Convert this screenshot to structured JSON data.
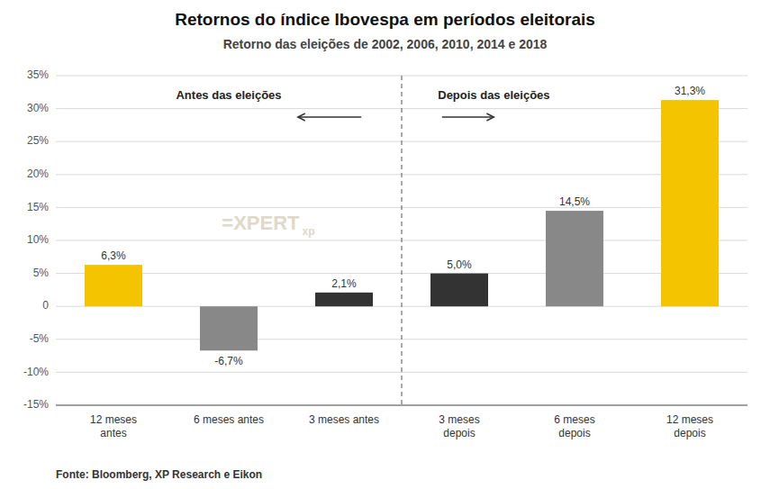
{
  "chart_data": {
    "type": "bar",
    "title": "Retornos do índice Ibovespa em períodos eleitorais",
    "subtitle": "Retorno das eleições de 2002, 2006, 2010, 2014 e 2018",
    "categories": [
      "12 meses\nantes",
      "6 meses antes",
      "3 meses antes",
      "3 meses\ndepois",
      "6 meses\ndepois",
      "12 meses\ndepois"
    ],
    "values": [
      6.3,
      -6.7,
      2.1,
      5.0,
      14.5,
      31.3
    ],
    "value_labels": [
      "6,3%",
      "-6,7%",
      "2,1%",
      "5,0%",
      "14,5%",
      "31,3%"
    ],
    "colors": [
      "#F5C400",
      "#888888",
      "#333333",
      "#333333",
      "#888888",
      "#F5C400"
    ],
    "ylim": [
      -15,
      35
    ],
    "yticks": [
      {
        "value": -15,
        "label": "-15%"
      },
      {
        "value": -10,
        "label": "-10%"
      },
      {
        "value": -5,
        "label": "-5%"
      },
      0,
      {
        "value": 5,
        "label": "5%"
      },
      {
        "value": 10,
        "label": "10%"
      },
      {
        "value": 15,
        "label": "15%"
      },
      {
        "value": 20,
        "label": "20%"
      },
      {
        "value": 25,
        "label": "25%"
      },
      {
        "value": 30,
        "label": "30%"
      },
      {
        "value": 35,
        "label": "35%"
      }
    ],
    "grid": true,
    "data_labels": true,
    "annotations": [
      "Antes das eleições",
      "Depois das eleições",
      "=XPERT",
      "xp"
    ],
    "source": "Fonte: Bloomberg, XP Research e Eikon"
  }
}
